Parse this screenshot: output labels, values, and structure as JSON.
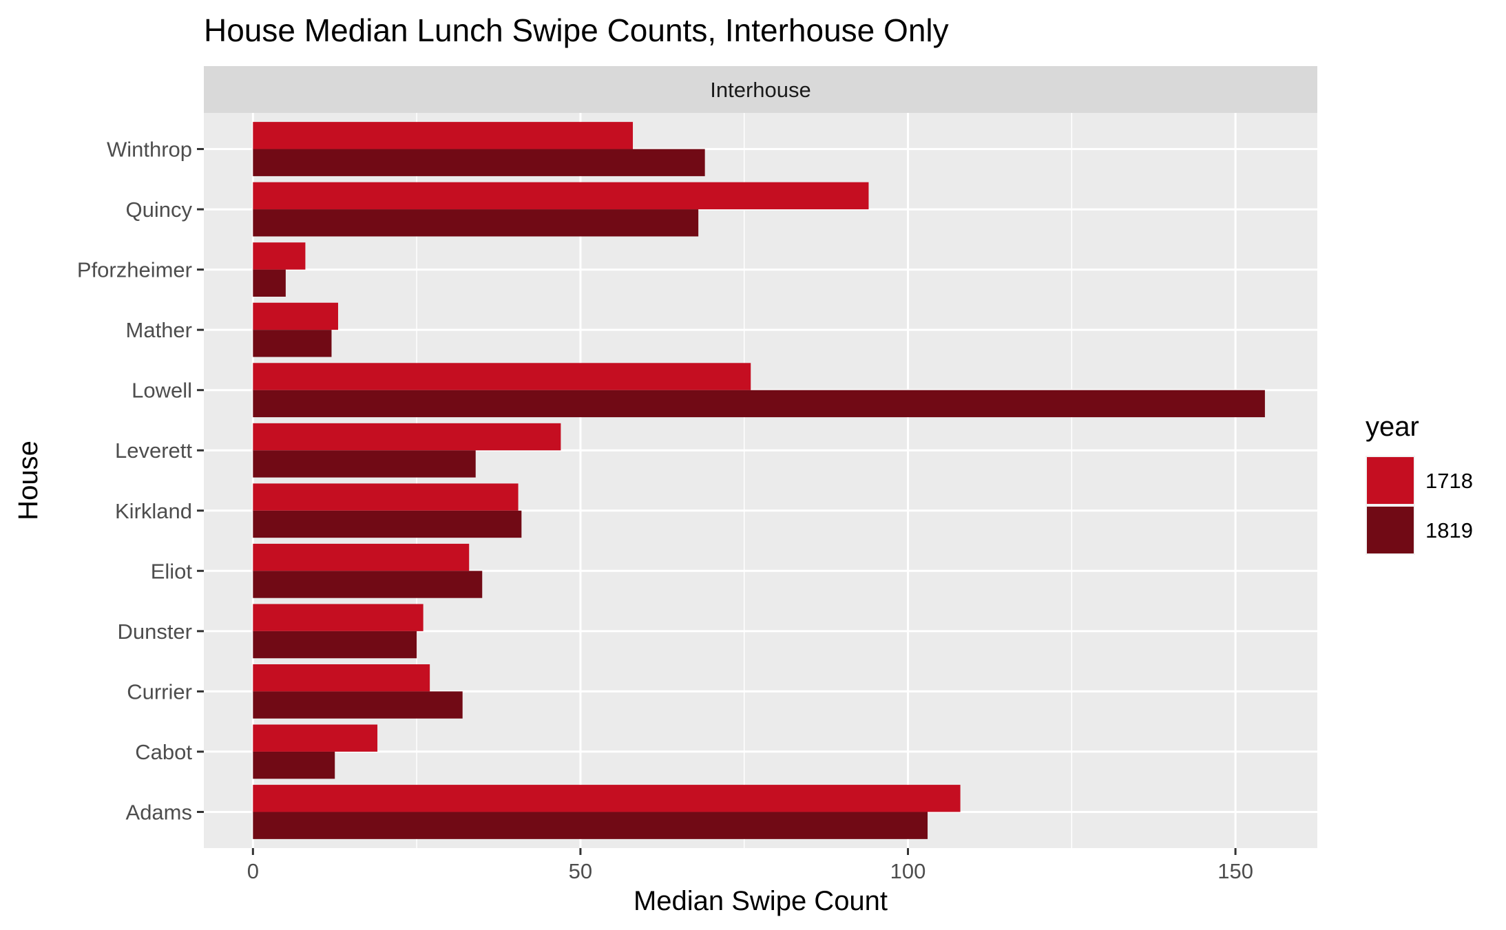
{
  "chart_data": {
    "type": "bar",
    "orientation": "horizontal",
    "title": "House Median Lunch Swipe Counts, Interhouse Only",
    "facet_label": "Interhouse",
    "xlabel": "Median Swipe Count",
    "ylabel": "House",
    "xlim": [
      -7.5,
      162.5
    ],
    "x_ticks": [
      0,
      50,
      100,
      150
    ],
    "grid": true,
    "categories": [
      "Adams",
      "Cabot",
      "Currier",
      "Dunster",
      "Eliot",
      "Kirkland",
      "Leverett",
      "Lowell",
      "Mather",
      "Pforzheimer",
      "Quincy",
      "Winthrop"
    ],
    "legend": {
      "title": "year",
      "position": "right"
    },
    "series": [
      {
        "name": "1718",
        "color": "#C50E21",
        "values": [
          108,
          19,
          27,
          26,
          33,
          40.5,
          47,
          76,
          13,
          8,
          94,
          58
        ]
      },
      {
        "name": "1819",
        "color": "#710A15",
        "values": [
          103,
          12.5,
          32,
          25,
          35,
          41,
          34,
          154.5,
          12,
          5,
          68,
          69
        ]
      }
    ]
  }
}
